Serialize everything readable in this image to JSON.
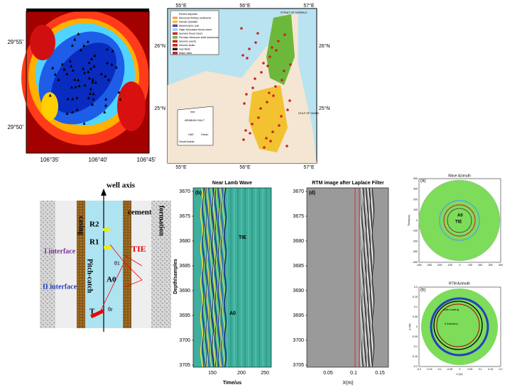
{
  "heatmap": {
    "yticks": [
      "29°55'",
      "29°50'"
    ],
    "xticks": [
      "106°35'",
      "106°40'",
      "106°45'"
    ]
  },
  "map": {
    "legend": [
      "Recent deposits",
      "Mesozoic/Tertiary sediments",
      "Semail Ophiolite",
      "Metamorphic sole",
      "Hajar Mountains thrust sheet",
      "Sumeini thrust sheet",
      "Permian-Mesozoic shelf sediments",
      "Seismic events",
      "Seismic faults",
      "Gas fields",
      "Major cities"
    ],
    "labels": [
      "STRAIT OF HORMUZ",
      "ARABIAN GULF",
      "GULF OF OMAN",
      "Iran",
      "UAE",
      "Oman",
      "Saudi Arabia"
    ],
    "xticks": [
      "55°E",
      "56°E",
      "57°E"
    ],
    "yticks": [
      "26°N",
      "25°N"
    ]
  },
  "borehole": {
    "well_axis": "well axis",
    "casing": "casing",
    "cement": "cement",
    "formation": "formation",
    "r2": "R2",
    "r1": "R1",
    "i_interface": "I interface",
    "ii_interface": "II interface",
    "pitch_catch": "Pitch-catch",
    "tie": "TIE",
    "a0": "A0",
    "t": "T",
    "theta1": "θ1",
    "thetar": "θr"
  },
  "lamb": {
    "title": "Near Lamb Wave",
    "panel": "(b)",
    "ylabel": "Depth/samples",
    "xlabel": "Time/us",
    "tie": "TIE",
    "a0": "A0",
    "yticks": [
      "3670",
      "3675",
      "3680",
      "3685",
      "3690",
      "3695",
      "3700",
      "3705"
    ],
    "xticks": [
      "150",
      "200",
      "250"
    ]
  },
  "rtm": {
    "title": "RTM image after Laplace Filter",
    "panel": "(d)",
    "xlabel": "X(m)",
    "yticks": [
      "3670",
      "3675",
      "3680",
      "3685",
      "3690",
      "3695",
      "3700",
      "3705"
    ],
    "xticks": [
      "0.05",
      "0.1",
      "0.15"
    ]
  },
  "wave_az": {
    "title": "Wave Azimuth",
    "panel": "(a)",
    "ylabel": "Time(us)",
    "a0": "A0",
    "tie": "TIE",
    "ticks": [
      "-400",
      "-300",
      "-200",
      "-100",
      "0",
      "100",
      "200",
      "300",
      "400"
    ]
  },
  "rtm_az": {
    "title": "RTM Azimuth",
    "panel": "(b)",
    "outer": "outer casing",
    "ii": "II interface",
    "xlabel": "x (m)",
    "ylabel": "y (m)",
    "ticks": [
      "-0.2",
      "-0.15",
      "-0.1",
      "-0.05",
      "0",
      "0.05",
      "0.1",
      "0.15",
      "0.2"
    ]
  }
}
